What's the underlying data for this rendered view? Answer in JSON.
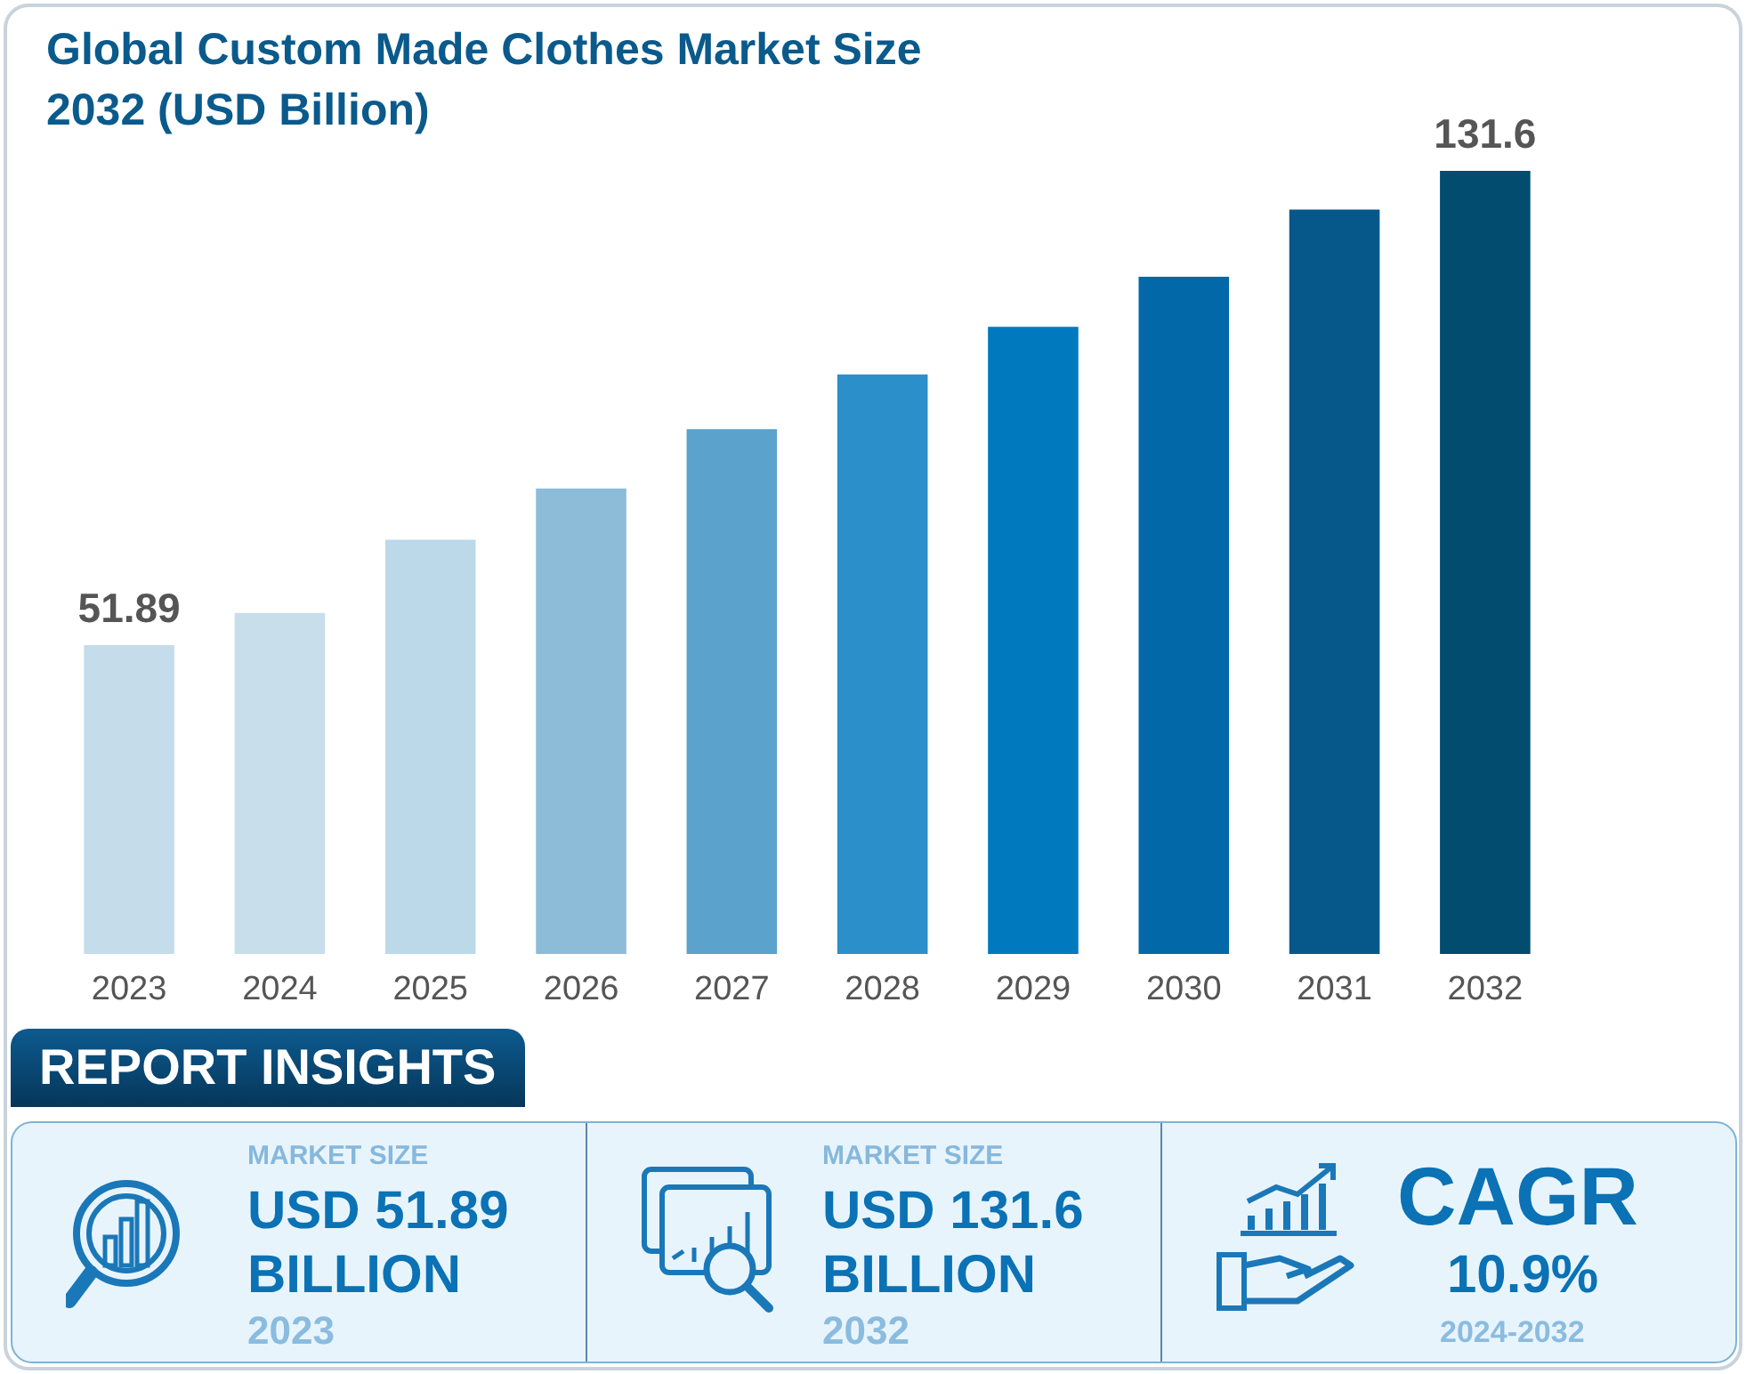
{
  "chart_data": [
    {
      "type": "bar",
      "title": [
        "Global Custom Made Clothes Market Size",
        "2032 (USD Billion)"
      ],
      "categories": [
        "2023",
        "2024",
        "2025",
        "2026",
        "2027",
        "2028",
        "2029",
        "2030",
        "2031",
        "2032"
      ],
      "values": [
        51.89,
        57.3,
        69.6,
        78.2,
        88.2,
        97.4,
        105.4,
        113.8,
        125.1,
        131.6
      ],
      "colors": [
        "#c5dcea",
        "#c8deeb",
        "#bcd9ea",
        "#8dbcd9",
        "#5ba2cd",
        "#2b8fca",
        "#0079bf",
        "#0368a8",
        "#07588a",
        "#024c70"
      ],
      "value_labels": [
        "51.89",
        null,
        null,
        null,
        null,
        null,
        null,
        null,
        null,
        "131.6"
      ]
    },
    {
      "type": "other",
      "title": "REPORT INSIGHTS",
      "annotations": [
        "MARKET SIZE",
        "USD 51.89 BILLION",
        "2023",
        "MARKET SIZE",
        "USD 131.6 BILLION",
        "2032",
        "CAGR",
        "10.9%",
        "2024-2032"
      ]
    }
  ]
}
